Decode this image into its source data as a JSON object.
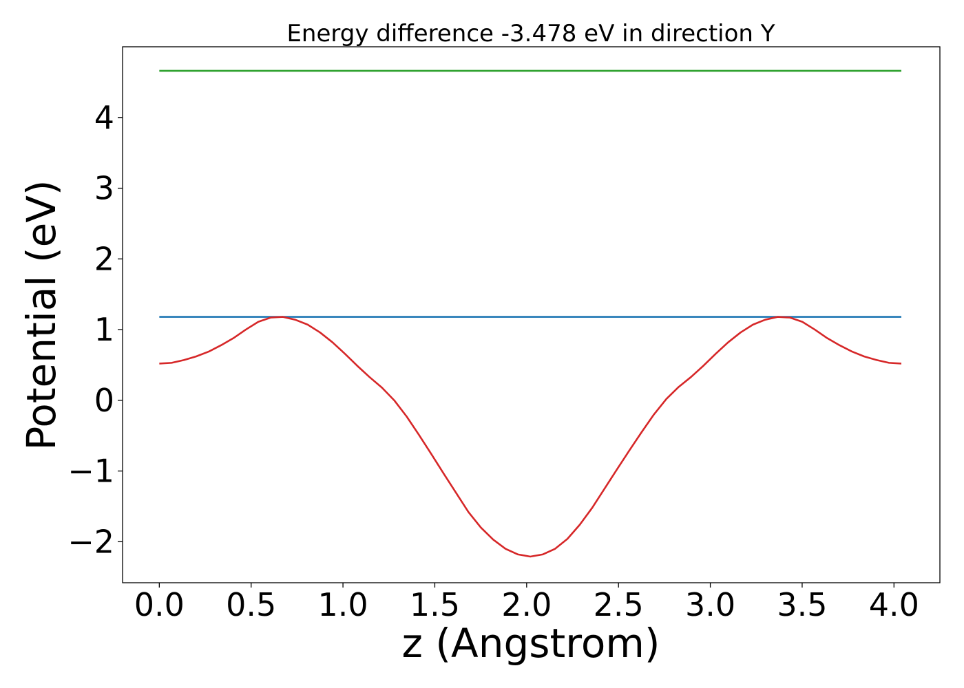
{
  "chart_data": {
    "type": "line",
    "title": "Energy difference -3.478 eV in direction Y",
    "xlabel": "z (Angstrom)",
    "ylabel": "Potential (eV)",
    "xlim": [
      -0.2,
      4.25
    ],
    "ylim": [
      -2.58,
      5.0
    ],
    "xticks": [
      0.0,
      0.5,
      1.0,
      1.5,
      2.0,
      2.5,
      3.0,
      3.5,
      4.0
    ],
    "xtick_labels": [
      "0.0",
      "0.5",
      "1.0",
      "1.5",
      "2.0",
      "2.5",
      "3.0",
      "3.5",
      "4.0"
    ],
    "yticks": [
      -2,
      -1,
      0,
      1,
      2,
      3,
      4
    ],
    "ytick_labels": [
      "−2",
      "−1",
      "0",
      "1",
      "2",
      "3",
      "4"
    ],
    "grid": false,
    "series": [
      {
        "color": "#2ca02c",
        "x": [
          0.0,
          4.04
        ],
        "y": [
          4.66,
          4.66
        ]
      },
      {
        "color": "#1f77b4",
        "x": [
          0.0,
          4.04
        ],
        "y": [
          1.18,
          1.18
        ]
      },
      {
        "color": "#d62728",
        "x": [
          0.0,
          0.067,
          0.135,
          0.2,
          0.27,
          0.337,
          0.404,
          0.471,
          0.539,
          0.606,
          0.673,
          0.74,
          0.808,
          0.875,
          0.943,
          1.01,
          1.077,
          1.144,
          1.212,
          1.279,
          1.347,
          1.414,
          1.481,
          1.549,
          1.616,
          1.683,
          1.751,
          1.818,
          1.885,
          1.953,
          2.02,
          2.087,
          2.155,
          2.222,
          2.289,
          2.357,
          2.424,
          2.491,
          2.559,
          2.626,
          2.693,
          2.761,
          2.828,
          2.895,
          2.963,
          3.03,
          3.097,
          3.165,
          3.232,
          3.299,
          3.367,
          3.434,
          3.501,
          3.569,
          3.636,
          3.703,
          3.771,
          3.838,
          3.905,
          3.973,
          4.04
        ],
        "y": [
          0.52,
          0.53,
          0.57,
          0.62,
          0.69,
          0.78,
          0.88,
          1.0,
          1.11,
          1.17,
          1.18,
          1.14,
          1.07,
          0.96,
          0.82,
          0.66,
          0.49,
          0.33,
          0.18,
          0.0,
          -0.23,
          -0.49,
          -0.76,
          -1.04,
          -1.31,
          -1.58,
          -1.8,
          -1.97,
          -2.1,
          -2.18,
          -2.21,
          -2.18,
          -2.1,
          -1.96,
          -1.76,
          -1.52,
          -1.25,
          -0.98,
          -0.71,
          -0.45,
          -0.2,
          0.02,
          0.19,
          0.33,
          0.49,
          0.66,
          0.82,
          0.96,
          1.07,
          1.14,
          1.18,
          1.17,
          1.11,
          1.0,
          0.88,
          0.78,
          0.69,
          0.62,
          0.57,
          0.53,
          0.52
        ]
      }
    ]
  }
}
